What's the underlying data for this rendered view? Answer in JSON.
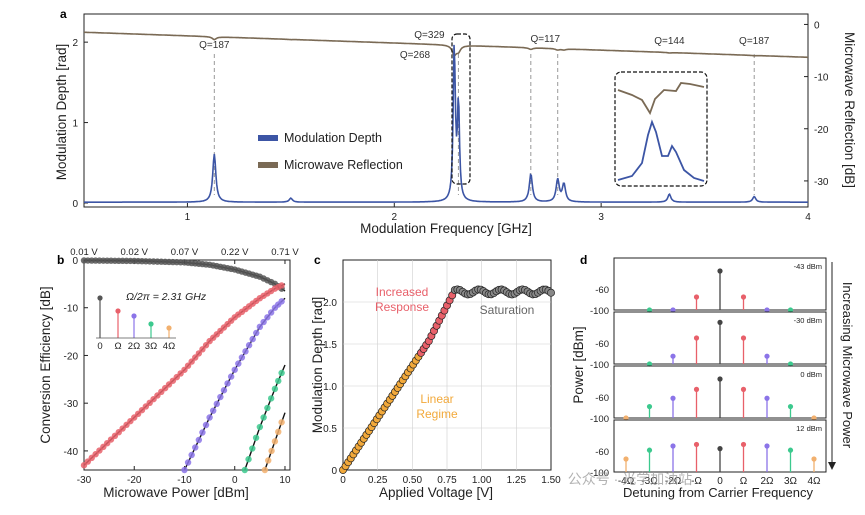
{
  "panel_labels": {
    "a": "a",
    "b": "b",
    "c": "c",
    "d": "d"
  },
  "watermark": "公众号 · 光学加油站",
  "chart_data": [
    {
      "id": "a",
      "type": "line",
      "xlabel": "Modulation Frequency [GHz]",
      "ylabel": "Modulation Depth [rad]",
      "ylabel_right": "Microwave Reflection [dB]",
      "xlim": [
        0.5,
        4.0
      ],
      "ylim": [
        -0.05,
        2.35
      ],
      "ylim_right": [
        -35,
        2
      ],
      "xticks": [
        "1",
        "2",
        "3",
        "4"
      ],
      "yticks": [
        "0",
        "1",
        "2"
      ],
      "yticks_right": [
        "0",
        "-10",
        "-20",
        "-30"
      ],
      "legend": [
        "Modulation Depth",
        "Microwave Reflection"
      ],
      "q_labels": [
        {
          "text": "Q=187",
          "f": 1.13
        },
        {
          "text": "Q=329",
          "f": 2.29
        },
        {
          "text": "Q=268",
          "f": 2.18
        },
        {
          "text": "Q=117",
          "f": 2.73
        },
        {
          "text": "Q=144",
          "f": 3.33
        },
        {
          "text": "Q=187",
          "f": 3.74
        }
      ],
      "resonances": [
        {
          "f": 1.13,
          "depth": 0.6
        },
        {
          "f": 1.5,
          "depth": 0.05
        },
        {
          "f": 2.29,
          "depth": 1.93
        },
        {
          "f": 2.31,
          "depth": 1.2
        },
        {
          "f": 2.66,
          "depth": 0.35
        },
        {
          "f": 2.79,
          "depth": 0.28
        },
        {
          "f": 2.82,
          "depth": 0.22
        },
        {
          "f": 3.33,
          "depth": 0.1
        },
        {
          "f": 3.74,
          "depth": 0.07
        }
      ],
      "reflection_start_db": -1.5,
      "reflection_end_db": -6.3,
      "colors": {
        "depth": "#3c55a5",
        "reflection": "#7a6a55"
      }
    },
    {
      "id": "b",
      "type": "line",
      "xlabel": "Microwave Power [dBm]",
      "ylabel": "Conversion Efficiency [dB]",
      "xlim": [
        -30,
        11
      ],
      "ylim": [
        -44,
        0
      ],
      "xticks": [
        "-30",
        "-20",
        "-10",
        "0",
        "10"
      ],
      "yticks": [
        "0",
        "-10",
        "-20",
        "-30",
        "-40"
      ],
      "top_ticks": [
        "0.01 V",
        "0.02 V",
        "0.07 V",
        "0.22 V",
        "0.71 V"
      ],
      "annotation": "Ω/2π = 2.31 GHz",
      "legend": [
        "0",
        "Ω",
        "2Ω",
        "3Ω",
        "4Ω"
      ],
      "series": [
        {
          "name": "0",
          "color": "#555555",
          "points": [
            [
              -30,
              -0.1
            ],
            [
              -20,
              -0.2
            ],
            [
              -10,
              -0.5
            ],
            [
              -5,
              -1.0
            ],
            [
              0,
              -2.0
            ],
            [
              5,
              -3.5
            ],
            [
              8,
              -5
            ],
            [
              10,
              -6.5
            ]
          ]
        },
        {
          "name": "Ω",
          "color": "#e8606a",
          "points": [
            [
              -30,
              -43
            ],
            [
              -20,
              -33
            ],
            [
              -10,
              -23
            ],
            [
              -5,
              -17
            ],
            [
              0,
              -12
            ],
            [
              5,
              -8
            ],
            [
              8,
              -6
            ],
            [
              10,
              -5
            ]
          ]
        },
        {
          "name": "2Ω",
          "color": "#8b74e8",
          "points": [
            [
              -10,
              -44
            ],
            [
              -5,
              -33
            ],
            [
              0,
              -23
            ],
            [
              5,
              -14
            ],
            [
              8,
              -10
            ],
            [
              10,
              -8
            ]
          ]
        },
        {
          "name": "3Ω",
          "color": "#3cc98e",
          "points": [
            [
              2,
              -44
            ],
            [
              5,
              -35
            ],
            [
              8,
              -27
            ],
            [
              10,
              -22
            ]
          ]
        },
        {
          "name": "4Ω",
          "color": "#f2b06e",
          "points": [
            [
              6,
              -44
            ],
            [
              8,
              -38
            ],
            [
              10,
              -32
            ]
          ]
        }
      ]
    },
    {
      "id": "c",
      "type": "scatter",
      "xlabel": "Applied Voltage [V]",
      "ylabel": "Modulation Depth [rad]",
      "xlim": [
        0,
        1.5
      ],
      "ylim": [
        0,
        2.5
      ],
      "xticks": [
        "0",
        "0.25",
        "0.50",
        "0.75",
        "1.00",
        "1.25",
        "1.50"
      ],
      "yticks": [
        "0",
        "0.5",
        "1.0",
        "1.5",
        "2.0"
      ],
      "annotations": [
        "Increased\nResponse",
        "Saturation",
        "Linear\nRegime"
      ],
      "colors": {
        "linear": "#f2a93b",
        "increased": "#e8606a",
        "saturation": "#888888"
      },
      "saturation_value": 2.12,
      "knee_voltage": 0.8
    },
    {
      "id": "d",
      "type": "bar",
      "xlabel": "Detuning from Carrier Frequency",
      "ylabel": "Power [dBm]",
      "side_label": "Increasing Microwave Power",
      "categories": [
        "-4Ω",
        "-3Ω",
        "-2Ω",
        "-Ω",
        "0",
        "Ω",
        "2Ω",
        "3Ω",
        "4Ω"
      ],
      "yticks": [
        "-60",
        "-100"
      ],
      "colors": [
        "#f2b06e",
        "#3cc98e",
        "#8b74e8",
        "#e8606a",
        "#444444",
        "#e8606a",
        "#8b74e8",
        "#3cc98e",
        "#f2b06e"
      ],
      "rows": [
        {
          "label": "-43 dBm",
          "values": [
            -130,
            -100,
            -100,
            -75,
            -25,
            -75,
            -100,
            -100,
            -130
          ]
        },
        {
          "label": "-30 dBm",
          "values": [
            -130,
            -100,
            -85,
            -50,
            -20,
            -50,
            -85,
            -100,
            -130
          ]
        },
        {
          "label": "0 dBm",
          "values": [
            -100,
            -78,
            -62,
            -45,
            -25,
            -45,
            -62,
            -78,
            -100
          ]
        },
        {
          "label": "12 dBm",
          "values": [
            -75,
            -58,
            -50,
            -47,
            -55,
            -47,
            -50,
            -58,
            -75
          ]
        }
      ]
    }
  ]
}
